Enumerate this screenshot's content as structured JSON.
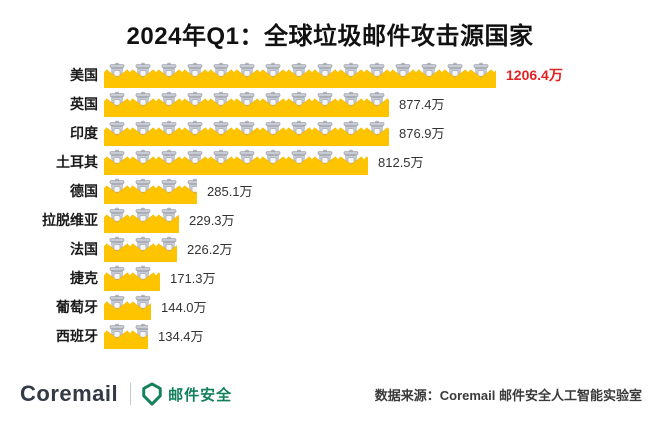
{
  "title": "2024年Q1：全球垃圾邮件攻击源国家",
  "chart_data": {
    "type": "bar",
    "orientation": "horizontal",
    "title": "2024年Q1：全球垃圾邮件攻击源国家",
    "unit": "万",
    "categories": [
      "美国",
      "英国",
      "印度",
      "土耳其",
      "德国",
      "拉脱维亚",
      "法国",
      "捷克",
      "葡萄牙",
      "西班牙"
    ],
    "values": [
      1206.4,
      877.4,
      876.9,
      812.5,
      285.1,
      229.3,
      226.2,
      171.3,
      144.0,
      134.4
    ],
    "value_labels": [
      "1206.4万",
      "877.4万",
      "876.9万",
      "812.5万",
      "285.1万",
      "229.3万",
      "226.2万",
      "171.3万",
      "144.0万",
      "134.4万"
    ],
    "highlight_index": 0,
    "xlim": [
      0,
      1260
    ],
    "grid": false,
    "legend": "none",
    "bar_color": "#ffc400",
    "icon": "trash-in-envelope-icon",
    "value_color": "#333333",
    "highlight_value_color": "#e12323"
  },
  "footer": {
    "brand": "Coremail",
    "brand_sub": "邮件安全",
    "source": "数据来源：Coremail 邮件安全人工智能实验室",
    "brand_color": "#333a45",
    "accent_green": "#12805b"
  }
}
